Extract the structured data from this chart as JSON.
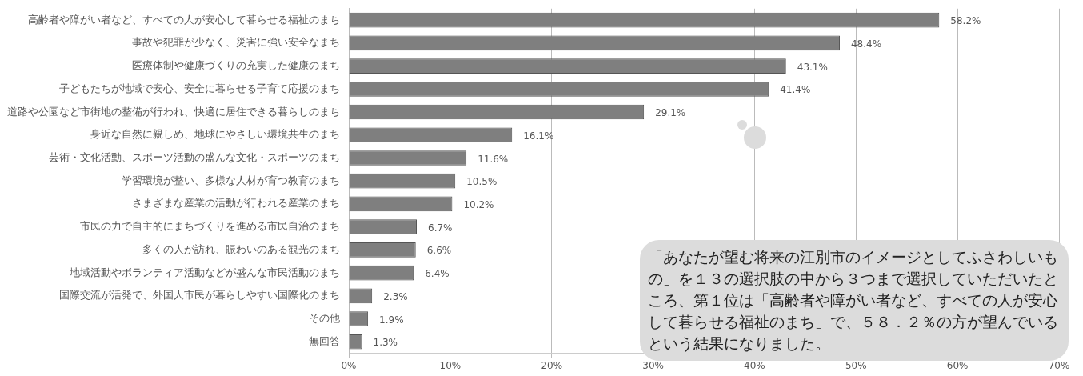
{
  "chart_data": {
    "type": "bar",
    "orientation": "horizontal",
    "categories": [
      "高齢者や障がい者など、すべての人が安心して暮らせる福祉のまち",
      "事故や犯罪が少なく、災害に強い安全なまち",
      "医療体制や健康づくりの充実した健康のまち",
      "子どもたちが地域で安心、安全に暮らせる子育て応援のまち",
      "道路や公園など市街地の整備が行われ、快適に居住できる暮らしのまち",
      "身近な自然に親しめ、地球にやさしい環境共生のまち",
      "芸術・文化活動、スポーツ活動の盛んな文化・スポーツのまち",
      "学習環境が整い、多様な人材が育つ教育のまち",
      "さまざまな産業の活動が行われる産業のまち",
      "市民の力で自主的にまちづくりを進める市民自治のまち",
      "多くの人が訪れ、賑わいのある観光のまち",
      "地域活動やボランティア活動などが盛んな市民活動のまち",
      "国際交流が活発で、外国人市民が暮らしやすい国際化のまち",
      "その他",
      "無回答"
    ],
    "values": [
      58.2,
      48.4,
      43.1,
      41.4,
      29.1,
      16.1,
      11.6,
      10.5,
      10.2,
      6.7,
      6.6,
      6.4,
      2.3,
      1.9,
      1.3
    ],
    "value_labels": [
      "58.2%",
      "48.4%",
      "43.1%",
      "41.4%",
      "29.1%",
      "16.1%",
      "11.6%",
      "10.5%",
      "10.2%",
      "6.7%",
      "6.6%",
      "6.4%",
      "2.3%",
      "1.9%",
      "1.3%"
    ],
    "color": "#7f7f7f",
    "xlim": [
      0,
      70
    ],
    "xticks": [
      {
        "value": 0,
        "label": "0%"
      },
      {
        "value": 10,
        "label": "10%"
      },
      {
        "value": 20,
        "label": "20%"
      },
      {
        "value": 30,
        "label": "30%"
      },
      {
        "value": 40,
        "label": "40%"
      },
      {
        "value": 50,
        "label": "50%"
      },
      {
        "value": 60,
        "label": "60%"
      },
      {
        "value": 70,
        "label": "70%"
      }
    ],
    "grid": "x",
    "annotations": [
      "「あなたが望む将来の江別市のイメージとしてふさわしいもの」を１３の選択肢の中から３つまで選択していただいたところ、第１位は「高齢者や障がい者など、すべての人が安心して暮らせる福祉のまち」で、５８．２％の方が望んでいるという結果になりました。"
    ]
  }
}
